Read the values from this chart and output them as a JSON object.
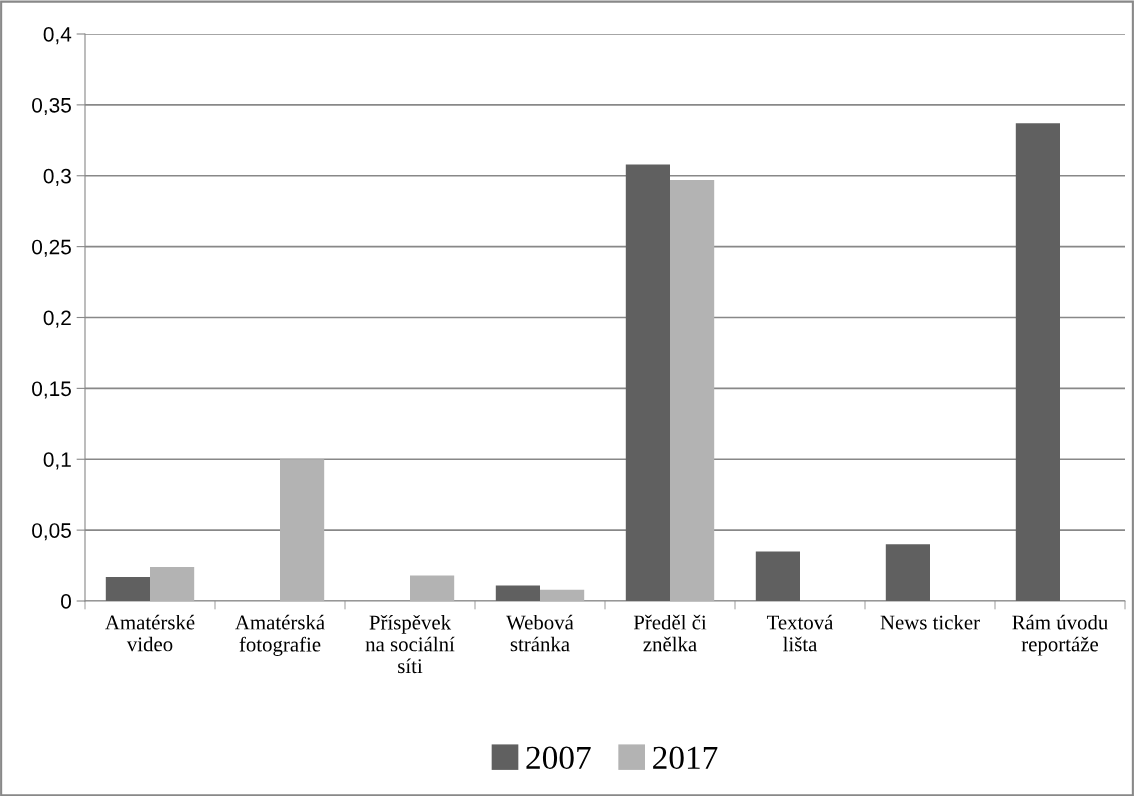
{
  "chart_data": {
    "type": "bar",
    "categories": [
      "Amatérské\nvideo",
      "Amatérská\nfotografie",
      "Příspěvek\nna sociální\nsíti",
      "Webová\nstránka",
      "Předěl či\nznělka",
      "Textová\nlišta",
      "News ticker",
      "Rám úvodu\nreportáže"
    ],
    "series": [
      {
        "name": "2007",
        "color": "#606060",
        "values": [
          0.017,
          null,
          null,
          0.011,
          0.308,
          0.035,
          0.04,
          0.337
        ]
      },
      {
        "name": "2017",
        "color": "#b3b3b3",
        "values": [
          0.024,
          0.1,
          0.018,
          0.008,
          0.297,
          null,
          null,
          null
        ]
      }
    ],
    "ylim": [
      0,
      0.4
    ],
    "yticks": [
      {
        "value": 0,
        "label": "0"
      },
      {
        "value": 0.05,
        "label": "0,05"
      },
      {
        "value": 0.1,
        "label": "0,1"
      },
      {
        "value": 0.15,
        "label": "0,15"
      },
      {
        "value": 0.2,
        "label": "0,2"
      },
      {
        "value": 0.25,
        "label": "0,25"
      },
      {
        "value": 0.3,
        "label": "0,3"
      },
      {
        "value": 0.35,
        "label": "0,35"
      },
      {
        "value": 0.4,
        "label": "0,4"
      }
    ],
    "grid": "y",
    "legend": "bottom"
  }
}
